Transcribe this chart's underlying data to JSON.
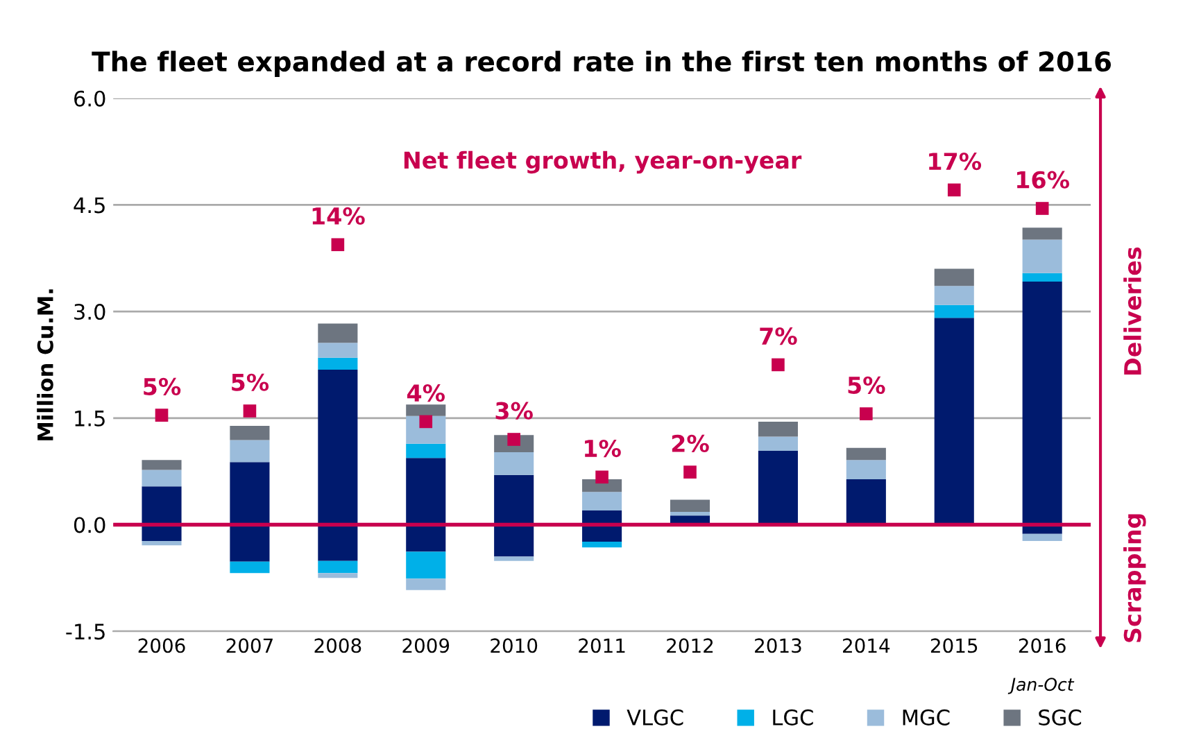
{
  "chart_data": {
    "type": "bar",
    "title": "The fleet expanded at a record rate in the first ten months of 2016",
    "ylabel": "Million Cu.M.",
    "categories": [
      "2006",
      "2007",
      "2008",
      "2009",
      "2010",
      "2011",
      "2012",
      "2013",
      "2014",
      "2015",
      "2016"
    ],
    "stacked": true,
    "series": [
      {
        "name": "VLGC",
        "color": "#001a6e",
        "values": [
          0.54,
          0.88,
          2.18,
          0.94,
          0.7,
          0.2,
          0.13,
          1.04,
          0.64,
          2.91,
          3.42
        ]
      },
      {
        "name": "LGC",
        "color": "#00b0e8",
        "values": [
          0,
          0,
          0.17,
          0.2,
          0,
          0,
          0,
          0,
          0,
          0.18,
          0.12
        ]
      },
      {
        "name": "MGC",
        "color": "#9bbcdb",
        "values": [
          0.23,
          0.31,
          0.21,
          0.39,
          0.32,
          0.26,
          0.05,
          0.2,
          0.27,
          0.27,
          0.47
        ]
      },
      {
        "name": "SGC",
        "color": "#6d7580",
        "values": [
          0.14,
          0.2,
          0.27,
          0.16,
          0.24,
          0.18,
          0.17,
          0.21,
          0.17,
          0.24,
          0.17
        ]
      },
      {
        "color": "#001a6e",
        "values": [
          -0.23,
          -0.52,
          -0.51,
          -0.38,
          -0.45,
          -0.24,
          0,
          0,
          0,
          0,
          -0.13
        ]
      },
      {
        "color": "#00b0e8",
        "values": [
          0,
          -0.16,
          -0.17,
          -0.38,
          0,
          -0.08,
          0,
          0,
          0,
          0,
          0
        ]
      },
      {
        "color": "#9bbcdb",
        "values": [
          -0.06,
          0,
          -0.07,
          -0.16,
          -0.06,
          0,
          0,
          0,
          0,
          0,
          -0.1
        ]
      },
      {
        "type": "scatter",
        "marker": "square",
        "color": "#c8004e",
        "values": [
          1.54,
          1.6,
          3.94,
          1.45,
          1.2,
          0.67,
          0.74,
          2.25,
          1.56,
          4.71,
          4.45
        ]
      }
    ],
    "ylim": [
      -1.5,
      6.0
    ],
    "yticks": [
      {
        "value": -1.5,
        "label": "-1.5"
      },
      {
        "value": 0,
        "label": "0.0"
      },
      {
        "value": 1.5,
        "label": "1.5"
      },
      {
        "value": 3.0,
        "label": "3.0"
      },
      {
        "value": 4.5,
        "label": "4.5"
      },
      {
        "value": 6.0,
        "label": "6.0"
      }
    ],
    "grid": "y",
    "legend": "bottom right",
    "ref_lines": [
      {
        "axis": "y",
        "value": 0,
        "color": "#c8004e"
      }
    ],
    "annotations": [
      "Net fleet growth, year-on-year",
      "Jan-Oct",
      "Deliveries",
      "Scrapping",
      {
        "text": "5%",
        "x": "2006",
        "y": 1.54
      },
      {
        "text": "5%",
        "x": "2007",
        "y": 1.6
      },
      {
        "text": "14%",
        "x": "2008",
        "y": 3.94
      },
      {
        "text": "4%",
        "x": "2009",
        "y": 1.45
      },
      {
        "text": "3%",
        "x": "2010",
        "y": 1.2
      },
      {
        "text": "1%",
        "x": "2011",
        "y": 0.67
      },
      {
        "text": "2%",
        "x": "2012",
        "y": 0.74
      },
      {
        "text": "7%",
        "x": "2013",
        "y": 2.25
      },
      {
        "text": "5%",
        "x": "2014",
        "y": 1.56
      },
      {
        "text": "17%",
        "x": "2015",
        "y": 4.71
      },
      {
        "text": "16%",
        "x": "2016",
        "y": 4.45
      }
    ]
  }
}
